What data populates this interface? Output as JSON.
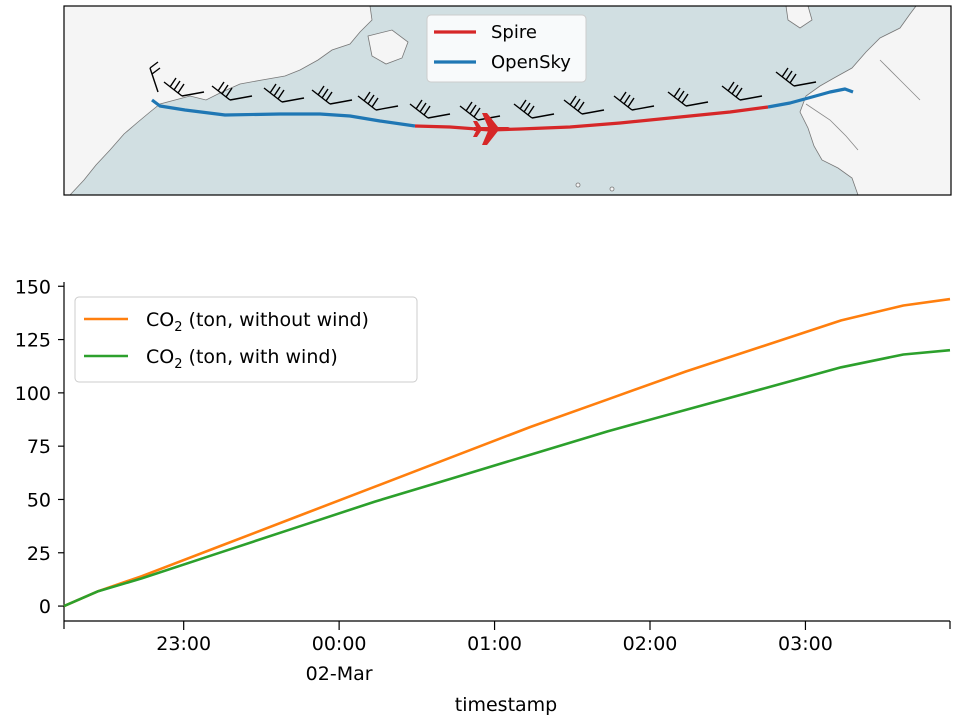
{
  "map_panel": {
    "legend": [
      {
        "label": "Spire",
        "color": "#d62728"
      },
      {
        "label": "OpenSky",
        "color": "#1f77b4"
      }
    ],
    "sea_color": "#d1dfe2",
    "land_color": "#f5f5f5",
    "aircraft_icon": "airplane-icon",
    "wind_icon": "wind-barb-icon"
  },
  "chart_data": {
    "type": "line",
    "title": "",
    "xlabel": "timestamp",
    "ylabel": "",
    "x_ticks": [
      {
        "main": "23:00",
        "sub": ""
      },
      {
        "main": "00:00",
        "sub": "02-Mar"
      },
      {
        "main": "01:00",
        "sub": ""
      },
      {
        "main": "02:00",
        "sub": ""
      },
      {
        "main": "03:00",
        "sub": ""
      }
    ],
    "x_ticks_hours": [
      0.77,
      1.77,
      2.77,
      3.77,
      4.77
    ],
    "xlim_hours": [
      0,
      5.7
    ],
    "ylim": [
      -7,
      152
    ],
    "yticks": [
      0,
      25,
      50,
      75,
      100,
      125,
      150
    ],
    "x": [
      0,
      0.22,
      0.5,
      1.0,
      1.5,
      2.0,
      2.5,
      3.0,
      3.5,
      4.0,
      4.5,
      5.0,
      5.4,
      5.7
    ],
    "series": [
      {
        "name": "CO2 (ton, without wind)",
        "legend_parts": [
          "CO",
          "2",
          " (ton, without wind)"
        ],
        "color": "#ff7f0e",
        "values": [
          0,
          7,
          14,
          28,
          42,
          56,
          70,
          84,
          97,
          110,
          122,
          134,
          141,
          144
        ]
      },
      {
        "name": "CO2 (ton, with wind)",
        "legend_parts": [
          "CO",
          "2",
          " (ton, with wind)"
        ],
        "color": "#2ca02c",
        "values": [
          0,
          7,
          13,
          25,
          37,
          49,
          60,
          71,
          82,
          92,
          102,
          112,
          118,
          120
        ]
      }
    ]
  }
}
